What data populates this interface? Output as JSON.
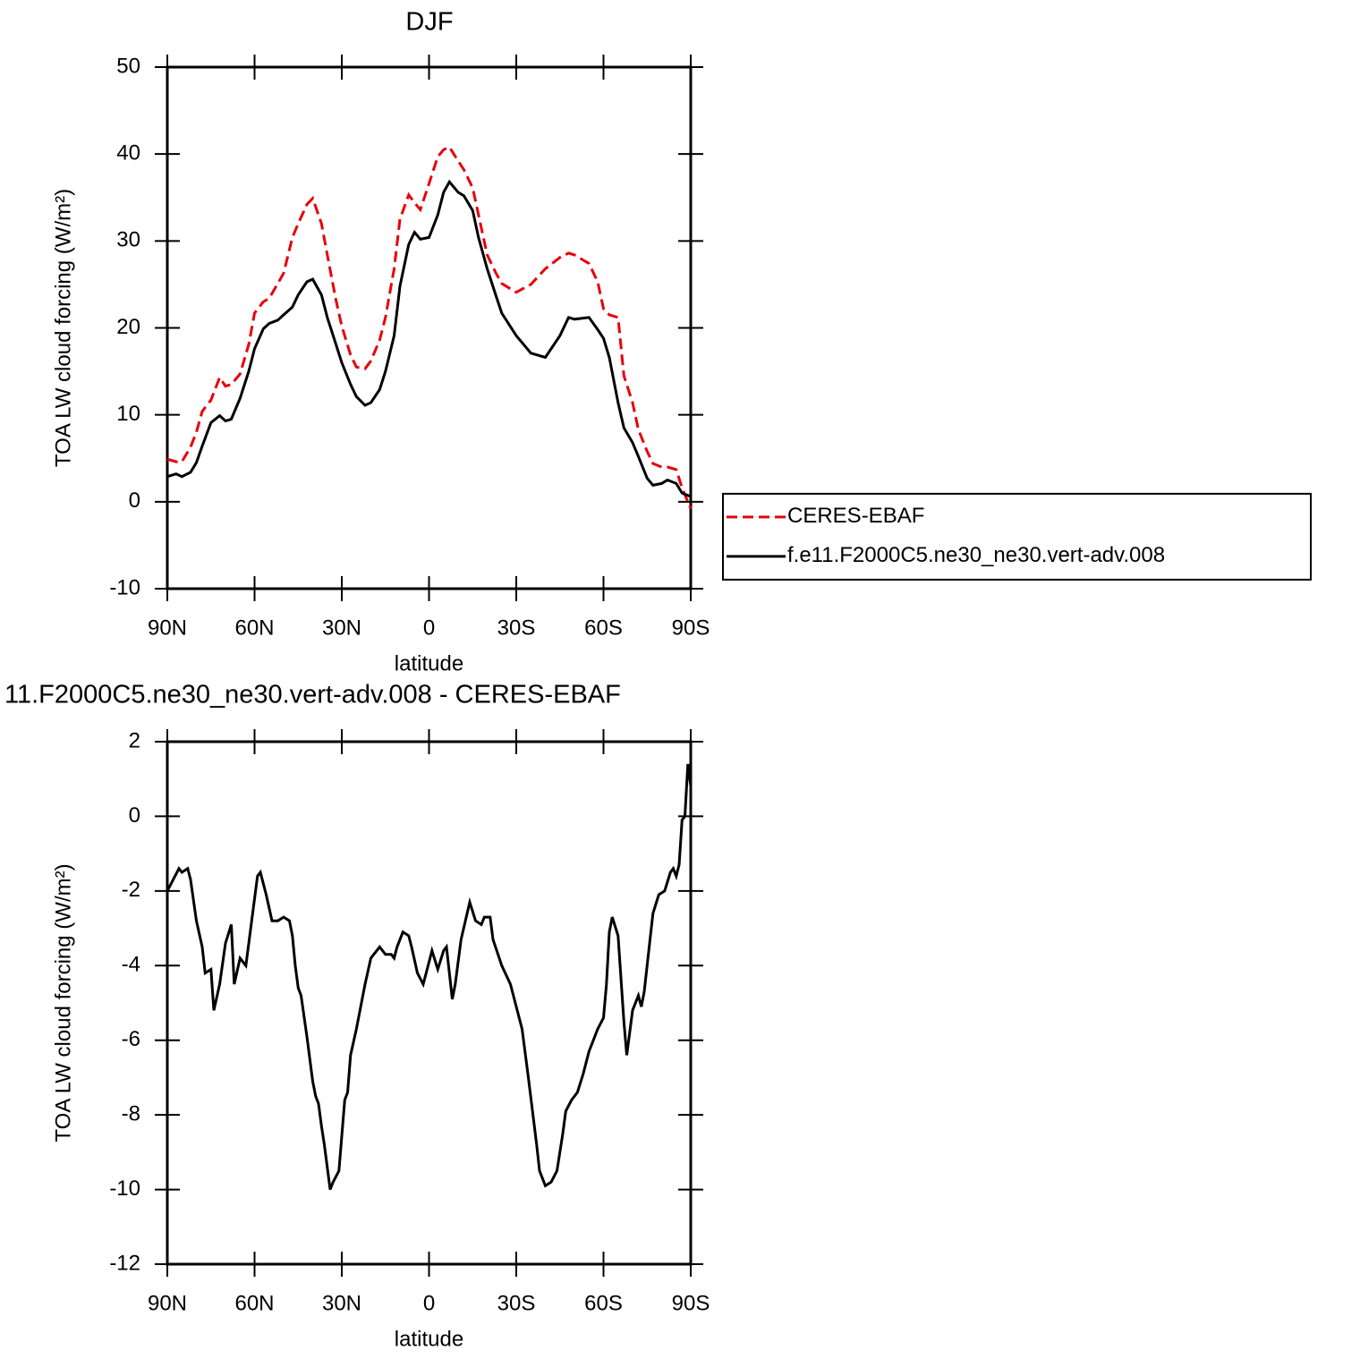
{
  "chart_data": [
    {
      "type": "line",
      "title": "DJF",
      "xlabel": "latitude",
      "ylabel": "TOA LW cloud forcing (W/m²)",
      "xlim": [
        90,
        -90
      ],
      "ylim": [
        -10,
        50
      ],
      "xticks": [
        {
          "value": 90,
          "label": "90N"
        },
        {
          "value": 60,
          "label": "60N"
        },
        {
          "value": 30,
          "label": "30N"
        },
        0,
        {
          "value": -30,
          "label": "30S"
        },
        {
          "value": -60,
          "label": "60S"
        },
        {
          "value": -90,
          "label": "90S"
        }
      ],
      "yticks": [
        -10,
        0,
        10,
        20,
        30,
        40,
        50
      ],
      "legend": "right",
      "x": [
        90,
        87,
        85,
        82,
        80,
        78,
        75,
        72,
        70,
        68,
        65,
        62,
        60,
        57,
        55,
        52,
        50,
        47,
        45,
        42,
        40,
        37,
        35,
        32,
        30,
        27,
        25,
        22,
        20,
        17,
        15,
        12,
        10,
        7,
        5,
        3,
        0,
        -3,
        -5,
        -7,
        -10,
        -12,
        -15,
        -17,
        -20,
        -23,
        -25,
        -30,
        -35,
        -40,
        -45,
        -48,
        -50,
        -55,
        -58,
        -60,
        -62,
        -65,
        -67,
        -70,
        -72,
        -75,
        -77,
        -80,
        -82,
        -85,
        -87,
        -90
      ],
      "series": [
        {
          "name": "CERES-EBAF",
          "color": "#e8000b",
          "dashed": true,
          "values": [
            4.9,
            4.6,
            4.6,
            6.3,
            8.0,
            10.4,
            11.7,
            14.3,
            13.3,
            13.5,
            14.7,
            18.1,
            21.7,
            23.0,
            23.4,
            25.1,
            26.3,
            30.4,
            32.0,
            34.2,
            34.9,
            32.0,
            28.4,
            23.2,
            20.2,
            16.9,
            15.5,
            15.3,
            16.2,
            18.6,
            21.2,
            26.8,
            32.5,
            35.3,
            34.4,
            33.6,
            36.6,
            39.7,
            40.5,
            40.8,
            39.2,
            38.2,
            36.1,
            33.0,
            28.4,
            26.3,
            25.1,
            24.1,
            25.0,
            26.8,
            28.1,
            28.6,
            28.4,
            27.4,
            25.3,
            22.2,
            21.5,
            21.2,
            14.5,
            11.4,
            8.3,
            5.8,
            4.4,
            4.0,
            4.0,
            3.7,
            1.6,
            -0.8
          ]
        },
        {
          "name": "f.e11.F2000C5.ne30_ne30.vert-adv.008",
          "color": "#000000",
          "dashed": false,
          "values": [
            2.9,
            3.2,
            2.9,
            3.4,
            4.5,
            6.4,
            9.1,
            9.9,
            9.3,
            9.5,
            11.9,
            15.0,
            17.6,
            19.9,
            20.5,
            20.9,
            21.5,
            22.4,
            23.8,
            25.3,
            25.6,
            23.8,
            21.2,
            18.1,
            16.0,
            13.5,
            12.1,
            11.1,
            11.4,
            12.9,
            15.0,
            19.1,
            24.8,
            29.6,
            31.0,
            30.2,
            30.4,
            33.0,
            35.6,
            36.8,
            35.6,
            35.2,
            33.5,
            30.4,
            26.8,
            23.7,
            21.7,
            19.1,
            17.1,
            16.6,
            19.1,
            21.2,
            21.0,
            21.2,
            19.8,
            18.8,
            16.6,
            11.4,
            8.5,
            6.8,
            5.2,
            2.7,
            1.9,
            2.1,
            2.5,
            2.1,
            1.0,
            0.6
          ]
        }
      ]
    },
    {
      "type": "line",
      "title": "11.F2000C5.ne30_ne30.vert-adv.008 - CERES-EBAF",
      "xlabel": "latitude",
      "ylabel": "TOA LW cloud forcing (W/m²)",
      "xlim": [
        90,
        -90
      ],
      "ylim": [
        -12,
        2
      ],
      "xticks": [
        {
          "value": 90,
          "label": "90N"
        },
        {
          "value": 60,
          "label": "60N"
        },
        {
          "value": 30,
          "label": "30N"
        },
        0,
        {
          "value": -30,
          "label": "30S"
        },
        {
          "value": -60,
          "label": "60S"
        },
        {
          "value": -90,
          "label": "90S"
        }
      ],
      "yticks": [
        -12,
        -10,
        -8,
        -6,
        -4,
        -2,
        0,
        2
      ],
      "x": [
        90,
        88,
        86,
        85,
        83,
        82,
        80,
        78,
        77,
        75,
        74,
        72,
        70,
        68,
        67,
        65,
        63,
        61,
        59,
        58,
        56,
        54,
        52,
        50,
        48,
        47,
        46,
        45,
        44,
        42,
        40,
        39,
        38,
        37,
        36,
        34,
        33,
        31,
        29,
        28,
        27,
        25,
        22,
        20,
        17,
        15,
        13,
        12,
        11,
        9,
        7,
        6,
        4,
        2,
        1,
        -1,
        -3,
        -5,
        -6,
        -8,
        -9,
        -11,
        -14,
        -16,
        -18,
        -19,
        -21,
        -22,
        -25,
        -28,
        -32,
        -34,
        -37,
        -38,
        -40,
        -42,
        -44,
        -46,
        -47,
        -49,
        -51,
        -53,
        -55,
        -58,
        -60,
        -61,
        -62,
        -63,
        -65,
        -67,
        -68,
        -70,
        -72,
        -73,
        -74,
        -76,
        -77,
        -79,
        -81,
        -83,
        -84,
        -85,
        -86,
        -87,
        -88,
        -89,
        -90
      ],
      "series": [
        {
          "color": "#000000",
          "dashed": false,
          "values": [
            -2.0,
            -1.7,
            -1.4,
            -1.5,
            -1.4,
            -1.7,
            -2.8,
            -3.5,
            -4.2,
            -4.1,
            -5.2,
            -4.5,
            -3.4,
            -2.9,
            -4.5,
            -3.8,
            -4.0,
            -2.8,
            -1.6,
            -1.5,
            -2.1,
            -2.8,
            -2.8,
            -2.7,
            -2.8,
            -3.2,
            -4.0,
            -4.6,
            -4.8,
            -5.9,
            -7.1,
            -7.5,
            -7.7,
            -8.3,
            -8.8,
            -10.0,
            -9.8,
            -9.5,
            -7.6,
            -7.4,
            -6.4,
            -5.7,
            -4.5,
            -3.8,
            -3.5,
            -3.7,
            -3.7,
            -3.8,
            -3.5,
            -3.1,
            -3.2,
            -3.5,
            -4.2,
            -4.5,
            -4.2,
            -3.6,
            -4.1,
            -3.6,
            -3.5,
            -4.9,
            -4.5,
            -3.3,
            -2.3,
            -2.8,
            -2.9,
            -2.7,
            -2.7,
            -3.3,
            -4.0,
            -4.5,
            -5.7,
            -6.9,
            -8.8,
            -9.5,
            -9.9,
            -9.8,
            -9.5,
            -8.5,
            -7.9,
            -7.6,
            -7.4,
            -6.9,
            -6.3,
            -5.7,
            -5.4,
            -4.5,
            -3.1,
            -2.7,
            -3.2,
            -5.5,
            -6.4,
            -5.2,
            -4.8,
            -5.1,
            -4.7,
            -3.3,
            -2.6,
            -2.1,
            -2.0,
            -1.5,
            -1.4,
            -1.6,
            -1.3,
            -0.1,
            0.0,
            1.4,
            0.8
          ]
        }
      ]
    }
  ]
}
